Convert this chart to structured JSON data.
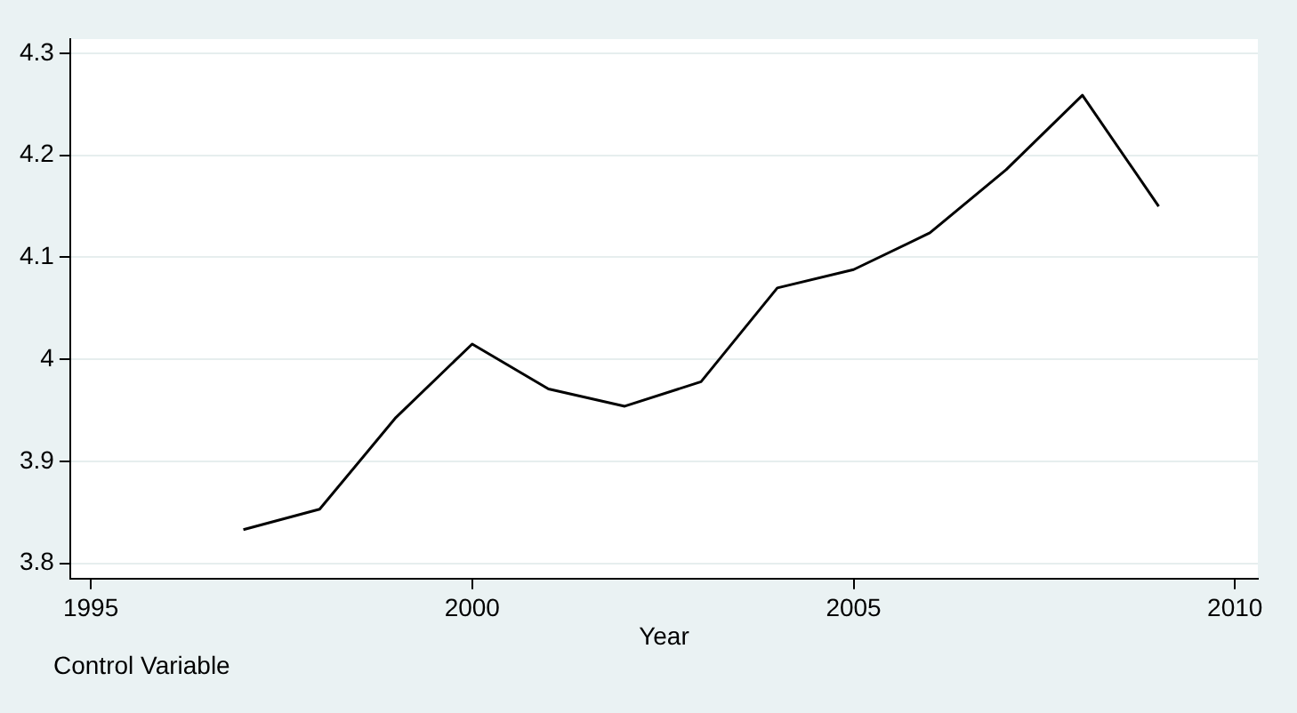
{
  "chart_data": {
    "type": "line",
    "xlabel": "Year",
    "annotations": [
      "Control Variable"
    ],
    "x": [
      1997,
      1998,
      1999,
      2000,
      2001,
      2002,
      2003,
      2004,
      2005,
      2006,
      2007,
      2008,
      2009
    ],
    "series": [
      {
        "color": "#000000",
        "values": [
          3.833,
          3.853,
          3.943,
          4.015,
          3.971,
          3.954,
          3.978,
          4.07,
          4.088,
          4.124,
          4.186,
          4.259,
          4.15
        ]
      }
    ],
    "xlim": [
      1994.73,
      2010.3
    ],
    "xticks": [
      1995,
      2000,
      2005,
      2010
    ],
    "ylim": [
      3.785,
      4.314
    ],
    "yticks": [
      3.8,
      3.9,
      4,
      4.1,
      4.2,
      4.3
    ],
    "grid": "y",
    "legend": false,
    "marker": "none",
    "line_style": "solid"
  }
}
